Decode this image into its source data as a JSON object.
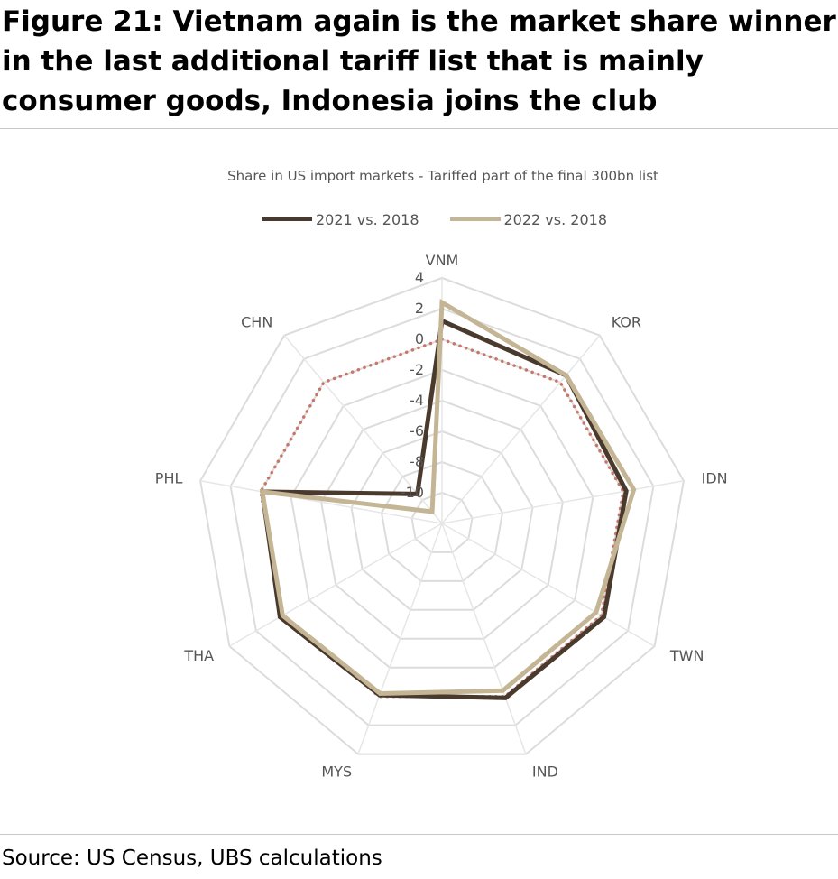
{
  "figure": {
    "title": "Figure 21: Vietnam again is the market share winner in the last additional tariff list that is mainly consumer goods, Indonesia joins the club",
    "source": "Source: US Census, UBS calculations"
  },
  "chart_data": {
    "type": "radar",
    "title": "Share in US import markets - Tariffed part of the final 300bn list",
    "categories": [
      "VNM",
      "KOR",
      "IDN",
      "TWN",
      "IND",
      "MYS",
      "THA",
      "PHL",
      "CHN"
    ],
    "r_ticks": [
      4,
      2,
      0,
      -2,
      -4,
      -6,
      -8,
      -10
    ],
    "rlim": [
      -12,
      4
    ],
    "grid": true,
    "legend_position": "top",
    "series": [
      {
        "name": "2021 vs. 2018",
        "color": "#4a3a2e",
        "style": "solid",
        "values": [
          1.2,
          0.6,
          0.2,
          0.2,
          0.1,
          -0.1,
          0.2,
          -0.1,
          -9.5
        ]
      },
      {
        "name": "2022 vs. 2018",
        "color": "#c4b595",
        "style": "solid",
        "values": [
          2.4,
          0.6,
          0.7,
          -0.4,
          -0.4,
          -0.2,
          0.0,
          -0.1,
          -11.0
        ]
      },
      {
        "color": "#c8766a",
        "style": "dotted",
        "values": [
          0.0,
          0.0,
          0.0,
          0.0,
          0.0,
          0.0,
          0.0,
          0.0,
          0.0
        ]
      }
    ]
  }
}
